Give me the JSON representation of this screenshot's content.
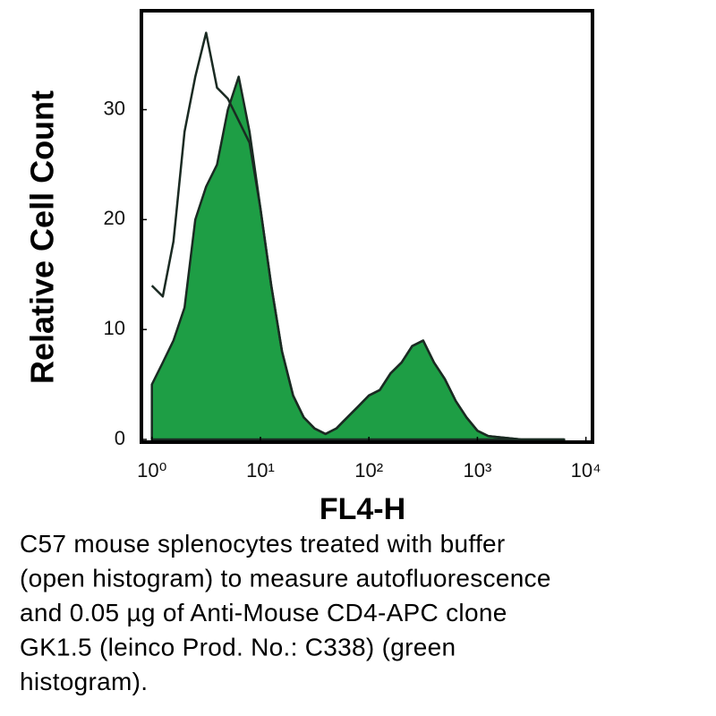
{
  "chart_data": {
    "type": "area",
    "xlabel": "FL4-H",
    "ylabel": "Relative Cell Count",
    "caption": [
      "C57 mouse splenocytes treated with buffer",
      "(open histogram) to measure autofluorescence",
      "and 0.05 µg of Anti-Mouse CD4-APC clone",
      "GK1.5 (leinco Prod. No.: C338) (green",
      "histogram)."
    ],
    "x": [
      1,
      1.26,
      1.58,
      2,
      2.51,
      3.16,
      3.98,
      5.01,
      6.31,
      7.94,
      10,
      12.6,
      15.8,
      20,
      25.1,
      31.6,
      39.8,
      50.1,
      63.1,
      79.4,
      100,
      126,
      158,
      200,
      251,
      316,
      398,
      501,
      631,
      794,
      1000,
      1260,
      1580,
      2000,
      2510,
      3160,
      3980,
      5010,
      6310
    ],
    "series": [
      {
        "color": "#1e9e45",
        "fill": true,
        "values": [
          5,
          7,
          9,
          12,
          20,
          23,
          25,
          30,
          33,
          28,
          21,
          14,
          8,
          4,
          2,
          1,
          0.5,
          1,
          2,
          3,
          4,
          4.5,
          6,
          7,
          8.5,
          9,
          7,
          5.5,
          3.5,
          2,
          0.8,
          0.3,
          0.2,
          0.1,
          0,
          0,
          0,
          0,
          0
        ]
      },
      {
        "color": "#1a2a22",
        "fill": false,
        "values": [
          14,
          13,
          18,
          28,
          33,
          37,
          32,
          31,
          29,
          27,
          21,
          14,
          8,
          4,
          2,
          1,
          0.5,
          1,
          2,
          3,
          4,
          4.5,
          6,
          7,
          8.5,
          9,
          7,
          5.5,
          3.5,
          2,
          0.8,
          0.3,
          0.2,
          0.1,
          0,
          0,
          0,
          0,
          0
        ]
      }
    ],
    "xlog": true,
    "xlim": [
      0.8,
      11500
    ],
    "xticks": [
      {
        "value": 1,
        "label": "10⁰"
      },
      {
        "value": 10,
        "label": "10¹"
      },
      {
        "value": 100,
        "label": "10²"
      },
      {
        "value": 1000,
        "label": "10³"
      },
      {
        "value": 10000,
        "label": "10⁴"
      }
    ],
    "ylim": [
      0,
      39
    ],
    "yticks": [
      0,
      10,
      20,
      30
    ]
  }
}
